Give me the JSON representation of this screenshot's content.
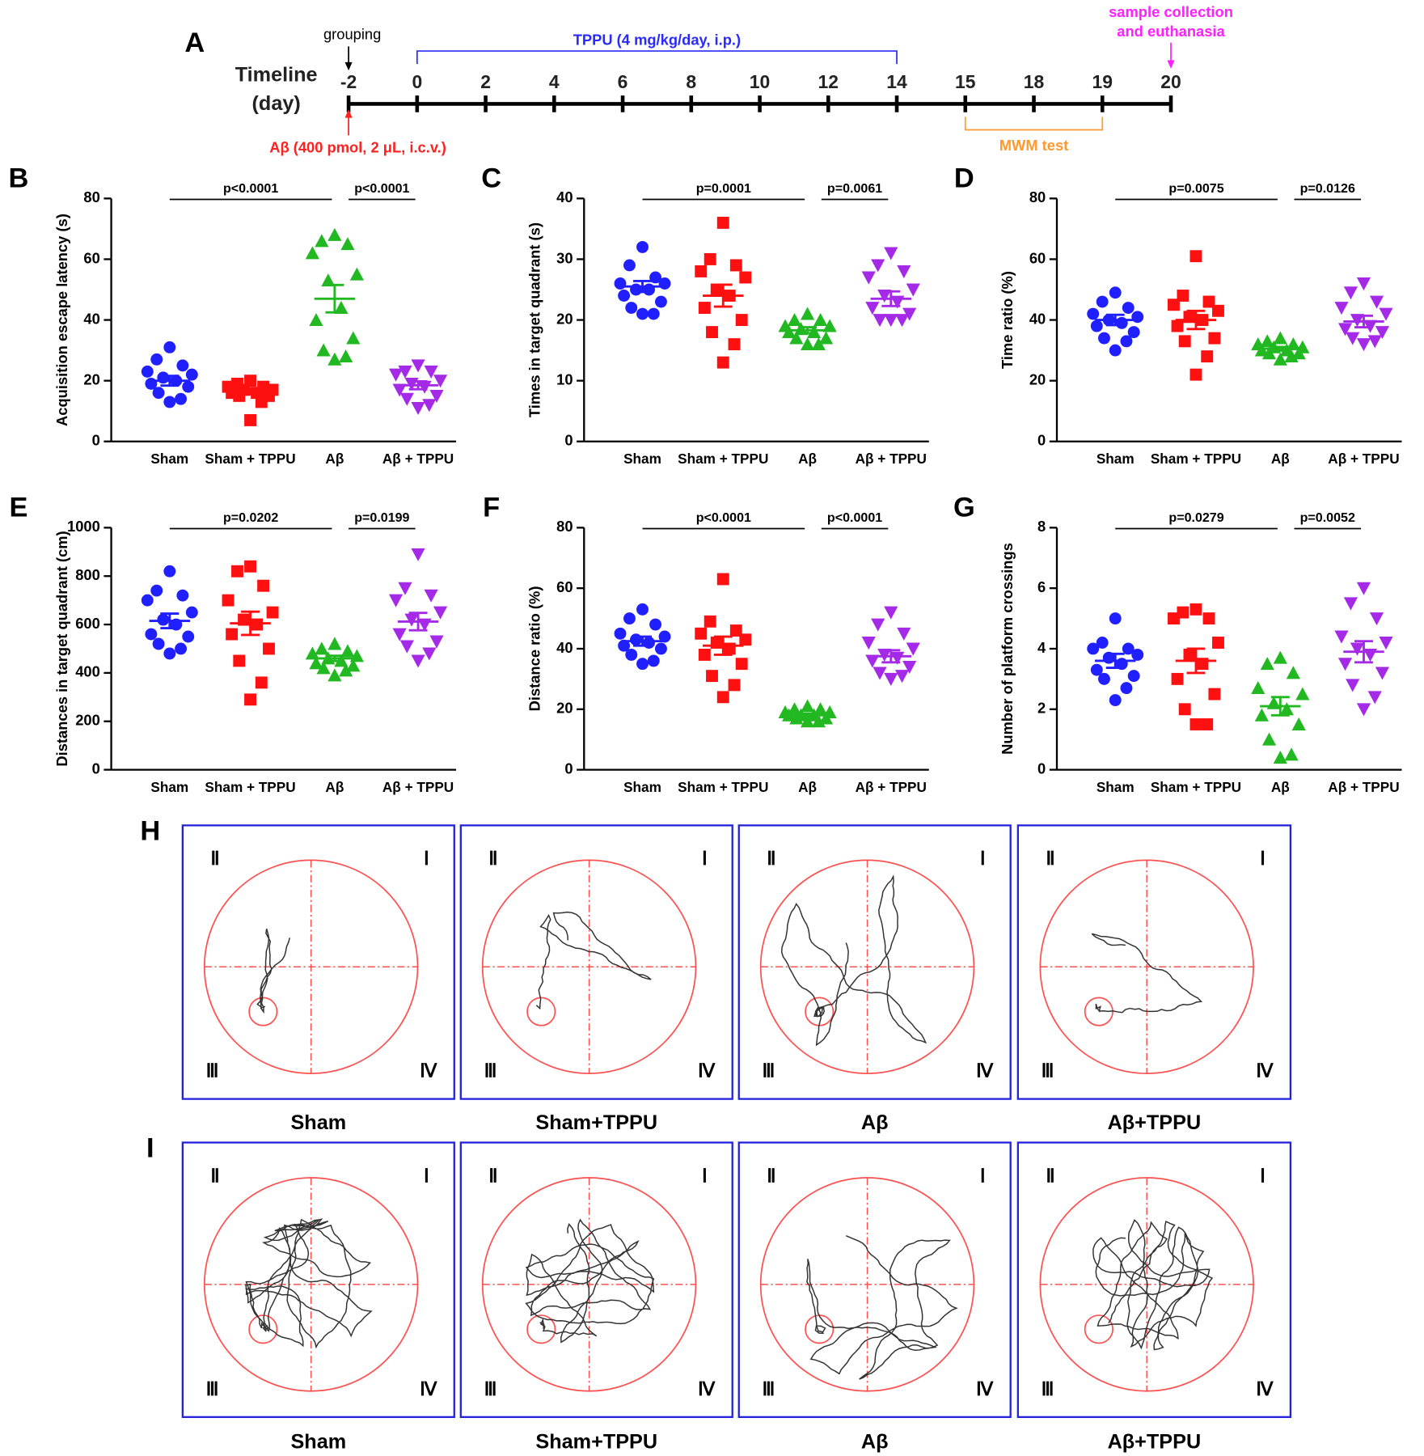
{
  "timeline": {
    "panel": "A",
    "label": [
      "Timeline",
      "(day)"
    ],
    "ticks": [
      -2,
      0,
      2,
      4,
      6,
      8,
      10,
      12,
      14,
      15,
      18,
      19,
      20
    ],
    "grouping": {
      "text": "grouping",
      "day": -2
    },
    "injection": {
      "text": "Aβ (400 pmol, 2 μL, i.c.v.)",
      "day": -2
    },
    "treatment": {
      "text": "TPPU (4 mg/kg/day, i.p.)",
      "start": 0,
      "end": 14
    },
    "test": {
      "text": "MWM test",
      "start": 15,
      "end": 19
    },
    "sample": {
      "text": [
        "sample collection",
        "and euthanasia"
      ],
      "day": 20
    }
  },
  "chart_data": [
    {
      "type": "strip",
      "panel": "B",
      "ylabel": "Acquisition escape latency (s)",
      "categories": [
        "Sham",
        "Sham + TPPU",
        "Aβ",
        "Aβ + TPPU"
      ],
      "ylim": [
        0,
        80
      ],
      "yticks": [
        0,
        20,
        40,
        60,
        80
      ],
      "series": [
        {
          "color": "#1f1fff",
          "marker": "circle",
          "values": [
            31,
            27,
            25,
            23,
            22,
            21,
            20,
            19,
            18,
            16,
            14,
            13
          ],
          "mean": 20,
          "sem": 1.6
        },
        {
          "color": "#ff1010",
          "marker": "square",
          "values": [
            20,
            19,
            18,
            18,
            17,
            17,
            16,
            16,
            15,
            15,
            13,
            7
          ],
          "mean": 16.5,
          "sem": 1
        },
        {
          "color": "#22b822",
          "marker": "triangle",
          "values": [
            68,
            66,
            65,
            62,
            55,
            53,
            44,
            40,
            34,
            30,
            28,
            27
          ],
          "mean": 47,
          "sem": 4.5
        },
        {
          "color": "#a52ae8",
          "marker": "triangle-down",
          "values": [
            25,
            23,
            23,
            22,
            20,
            19,
            18,
            17,
            15,
            14,
            12,
            11
          ],
          "mean": 18.5,
          "sem": 1.3
        }
      ],
      "comparisons": [
        {
          "label": "p<0.0001",
          "groups": [
            "Sham",
            "Aβ"
          ]
        },
        {
          "label": "p<0.0001",
          "groups": [
            "Aβ",
            "Aβ + TPPU"
          ]
        }
      ]
    },
    {
      "type": "strip",
      "panel": "C",
      "ylabel": "Times in target quadrant (s)",
      "categories": [
        "Sham",
        "Sham + TPPU",
        "Aβ",
        "Aβ + TPPU"
      ],
      "ylim": [
        0,
        40
      ],
      "yticks": [
        0,
        10,
        20,
        30,
        40
      ],
      "series": [
        {
          "color": "#1f1fff",
          "marker": "circle",
          "values": [
            32,
            29,
            27,
            26,
            26,
            25,
            25,
            24,
            23,
            22,
            21,
            21
          ],
          "mean": 25.5,
          "sem": 0.9
        },
        {
          "color": "#ff1010",
          "marker": "square",
          "values": [
            36,
            30,
            29,
            28,
            27,
            25,
            24,
            22,
            20,
            18,
            16,
            13
          ],
          "mean": 24,
          "sem": 1.8
        },
        {
          "color": "#22b822",
          "marker": "triangle",
          "values": [
            21,
            20,
            20,
            19,
            19,
            18.5,
            18,
            18,
            17,
            17,
            16,
            16
          ],
          "mean": 18.3,
          "sem": 0.5
        },
        {
          "color": "#a52ae8",
          "marker": "triangle-down",
          "values": [
            31,
            29,
            28,
            27,
            25,
            24,
            23,
            22,
            21,
            20,
            20,
            20
          ],
          "mean": 23.5,
          "sem": 1.2
        }
      ],
      "comparisons": [
        {
          "label": "p=0.0001",
          "groups": [
            "Sham",
            "Aβ"
          ]
        },
        {
          "label": "p=0.0061",
          "groups": [
            "Aβ",
            "Aβ + TPPU"
          ]
        }
      ]
    },
    {
      "type": "strip",
      "panel": "D",
      "ylabel": "Time ratio (%)",
      "categories": [
        "Sham",
        "Sham + TPPU",
        "Aβ",
        "Aβ + TPPU"
      ],
      "ylim": [
        0,
        80
      ],
      "yticks": [
        0,
        20,
        40,
        60,
        80
      ],
      "series": [
        {
          "color": "#1f1fff",
          "marker": "circle",
          "values": [
            49,
            46,
            44,
            42,
            41,
            40,
            39,
            38,
            36,
            34,
            33,
            30
          ],
          "mean": 40,
          "sem": 1.7
        },
        {
          "color": "#ff1010",
          "marker": "square",
          "values": [
            61,
            48,
            46,
            45,
            43,
            41,
            40,
            38,
            34,
            33,
            28,
            22
          ],
          "mean": 40,
          "sem": 3
        },
        {
          "color": "#22b822",
          "marker": "triangle",
          "values": [
            34,
            33,
            32,
            32,
            31,
            31,
            30,
            30,
            29,
            29,
            28,
            27
          ],
          "mean": 30.5,
          "sem": 0.6
        },
        {
          "color": "#a52ae8",
          "marker": "triangle-down",
          "values": [
            52,
            49,
            46,
            44,
            42,
            40,
            38,
            37,
            36,
            34,
            33,
            32
          ],
          "mean": 39.5,
          "sem": 1.9
        }
      ],
      "comparisons": [
        {
          "label": "p=0.0075",
          "groups": [
            "Sham",
            "Aβ"
          ]
        },
        {
          "label": "p=0.0126",
          "groups": [
            "Aβ",
            "Aβ + TPPU"
          ]
        }
      ]
    },
    {
      "type": "strip",
      "panel": "E",
      "ylabel": "Distances in target quadrant (cm)",
      "categories": [
        "Sham",
        "Sham + TPPU",
        "Aβ",
        "Aβ + TPPU"
      ],
      "ylim": [
        0,
        1000
      ],
      "yticks": [
        0,
        200,
        400,
        600,
        800,
        1000
      ],
      "series": [
        {
          "color": "#1f1fff",
          "marker": "circle",
          "values": [
            820,
            740,
            720,
            700,
            650,
            620,
            600,
            560,
            550,
            520,
            500,
            480
          ],
          "mean": 615,
          "sem": 30
        },
        {
          "color": "#ff1010",
          "marker": "square",
          "values": [
            840,
            820,
            760,
            700,
            650,
            620,
            600,
            560,
            500,
            450,
            360,
            290
          ],
          "mean": 605,
          "sem": 48
        },
        {
          "color": "#22b822",
          "marker": "triangle",
          "values": [
            520,
            500,
            490,
            480,
            470,
            460,
            450,
            440,
            430,
            420,
            410,
            390
          ],
          "mean": 460,
          "sem": 11
        },
        {
          "color": "#a52ae8",
          "marker": "triangle-down",
          "values": [
            890,
            750,
            720,
            700,
            650,
            620,
            600,
            560,
            530,
            510,
            480,
            450
          ],
          "mean": 612,
          "sem": 36
        }
      ],
      "comparisons": [
        {
          "label": "p=0.0202",
          "groups": [
            "Sham",
            "Aβ"
          ]
        },
        {
          "label": "p=0.0199",
          "groups": [
            "Aβ",
            "Aβ + TPPU"
          ]
        }
      ]
    },
    {
      "type": "strip",
      "panel": "F",
      "ylabel": "Distance ratio (%)",
      "categories": [
        "Sham",
        "Sham + TPPU",
        "Aβ",
        "Aβ + TPPU"
      ],
      "ylim": [
        0,
        80
      ],
      "yticks": [
        0,
        20,
        40,
        60,
        80
      ],
      "series": [
        {
          "color": "#1f1fff",
          "marker": "circle",
          "values": [
            53,
            50,
            48,
            45,
            44,
            43,
            42,
            41,
            40,
            38,
            36,
            35
          ],
          "mean": 42.5,
          "sem": 1.5
        },
        {
          "color": "#ff1010",
          "marker": "square",
          "values": [
            63,
            49,
            46,
            45,
            43,
            42,
            40,
            38,
            35,
            31,
            28,
            24
          ],
          "mean": 41,
          "sem": 3
        },
        {
          "color": "#22b822",
          "marker": "triangle",
          "values": [
            21,
            20,
            20,
            19,
            19,
            18,
            18,
            18,
            17,
            17,
            16,
            16
          ],
          "mean": 18,
          "sem": 0.5
        },
        {
          "color": "#a52ae8",
          "marker": "triangle-down",
          "values": [
            52,
            48,
            45,
            42,
            40,
            38,
            37,
            36,
            34,
            32,
            31,
            30
          ],
          "mean": 37.5,
          "sem": 2
        }
      ],
      "comparisons": [
        {
          "label": "p<0.0001",
          "groups": [
            "Sham",
            "Aβ"
          ]
        },
        {
          "label": "p<0.0001",
          "groups": [
            "Aβ",
            "Aβ + TPPU"
          ]
        }
      ]
    },
    {
      "type": "strip",
      "panel": "G",
      "ylabel": "Number of platform crossings",
      "categories": [
        "Sham",
        "Sham + TPPU",
        "Aβ",
        "Aβ + TPPU"
      ],
      "ylim": [
        0,
        8
      ],
      "yticks": [
        0,
        2,
        4,
        6,
        8
      ],
      "series": [
        {
          "color": "#1f1fff",
          "marker": "circle",
          "values": [
            5,
            4.2,
            4,
            4,
            3.8,
            3.7,
            3.5,
            3.3,
            3.1,
            3,
            2.7,
            2.3
          ],
          "mean": 3.6,
          "sem": 0.23
        },
        {
          "color": "#ff1010",
          "marker": "square",
          "values": [
            5.3,
            5.2,
            5,
            5,
            4.2,
            3.8,
            3.5,
            3,
            2.5,
            2,
            1.5,
            1.5
          ],
          "mean": 3.6,
          "sem": 0.4
        },
        {
          "color": "#22b822",
          "marker": "triangle",
          "values": [
            3.7,
            3.5,
            3.2,
            2.7,
            2.5,
            2.2,
            2,
            1.8,
            1.5,
            1,
            0.5,
            0.4
          ],
          "mean": 2.1,
          "sem": 0.3
        },
        {
          "color": "#a52ae8",
          "marker": "triangle-down",
          "values": [
            6,
            5.5,
            5,
            4.4,
            4.2,
            4,
            3.8,
            3.5,
            3.2,
            2.8,
            2.4,
            2
          ],
          "mean": 3.9,
          "sem": 0.35
        }
      ],
      "comparisons": [
        {
          "label": "p=0.0279",
          "groups": [
            "Sham",
            "Aβ"
          ]
        },
        {
          "label": "p=0.0052",
          "groups": [
            "Aβ",
            "Aβ + TPPU"
          ]
        }
      ]
    }
  ],
  "tracks": {
    "rows": [
      {
        "panel": "H"
      },
      {
        "panel": "I"
      }
    ],
    "groups": [
      "Sham",
      "Sham+TPPU",
      "Aβ",
      "Aβ+TPPU"
    ],
    "quadrants": [
      "Ⅱ",
      "Ⅰ",
      "Ⅲ",
      "Ⅳ"
    ]
  }
}
